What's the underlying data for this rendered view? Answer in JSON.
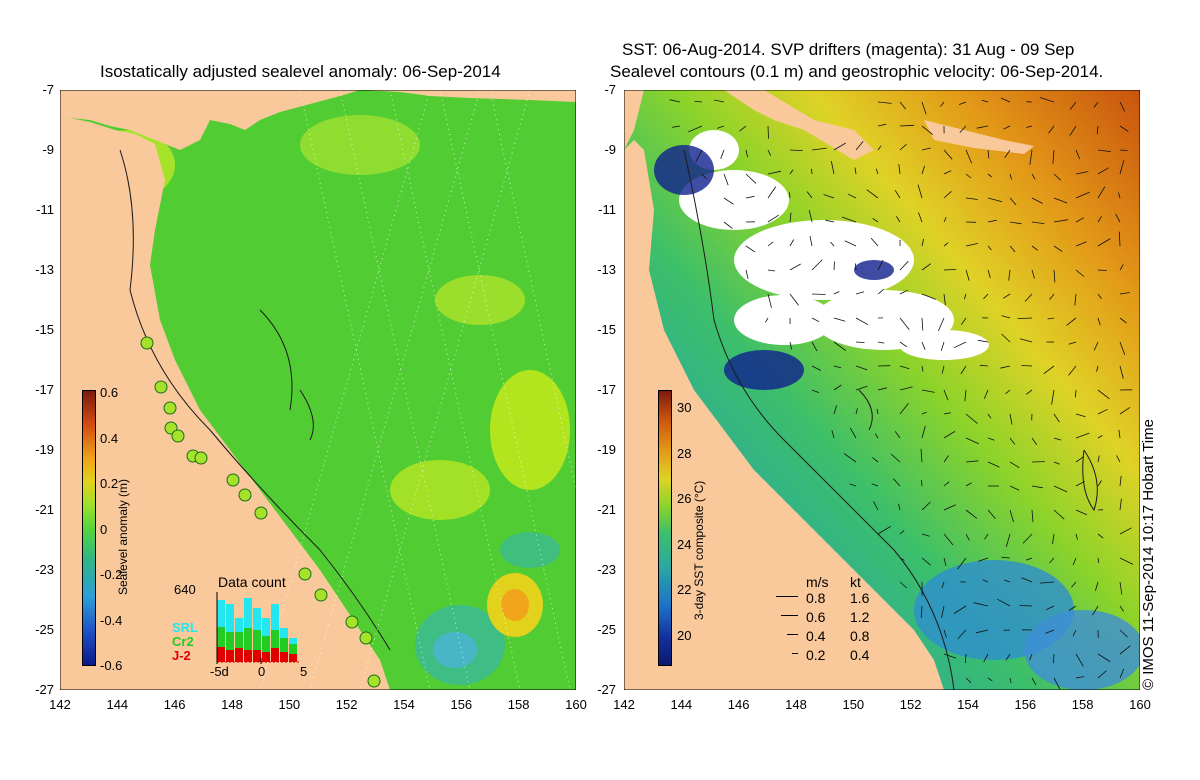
{
  "left_map": {
    "title": "Isostatically adjusted sealevel anomaly: 06-Sep-2014",
    "colorbar": {
      "label": "Sealevel anomaly (m)",
      "ticks": [
        "0.6",
        "0.4",
        "0.2",
        "0",
        "-0.2",
        "-0.4",
        "-0.6"
      ]
    },
    "data_count": {
      "max_label": "640",
      "title": "Data count",
      "legend": [
        {
          "label": "SRL",
          "color": "#22e6f0"
        },
        {
          "label": "Cr2",
          "color": "#22cc22"
        },
        {
          "label": "J-2",
          "color": "#e00000"
        }
      ],
      "axis_labels": [
        "-5d",
        "0",
        "5"
      ]
    }
  },
  "right_map": {
    "title_line1": "SST: 06-Aug-2014. SVP drifters (magenta): 31 Aug - 09 Sep",
    "title_line2": "Sealevel contours (0.1 m) and geostrophic velocity: 06-Sep-2014.",
    "colorbar": {
      "label": "3-day SST composite (°C)",
      "ticks": [
        "30",
        "28",
        "26",
        "24",
        "22",
        "20"
      ]
    },
    "speed_legend": {
      "header_ms": "m/s",
      "header_kt": "kt",
      "rows": [
        {
          "ms": "0.8",
          "kt": "1.6"
        },
        {
          "ms": "0.6",
          "kt": "1.2"
        },
        {
          "ms": "0.4",
          "kt": "0.8"
        },
        {
          "ms": "0.2",
          "kt": "0.4"
        }
      ]
    }
  },
  "axes": {
    "lat_ticks": [
      "-7",
      "-9",
      "-11",
      "-13",
      "-15",
      "-17",
      "-19",
      "-21",
      "-23",
      "-25",
      "-27"
    ],
    "lon_ticks": [
      "142",
      "144",
      "146",
      "148",
      "150",
      "152",
      "154",
      "156",
      "158",
      "160"
    ]
  },
  "footer": "© IMOS 11-Sep-2014 10:17 Hobart Time",
  "colors": {
    "land": "#f9c99c",
    "sla_zero": "#55d63a",
    "sst_warm": "#d77a10",
    "sst_mid": "#e0d228",
    "sst_cool": "#2bb09a"
  }
}
